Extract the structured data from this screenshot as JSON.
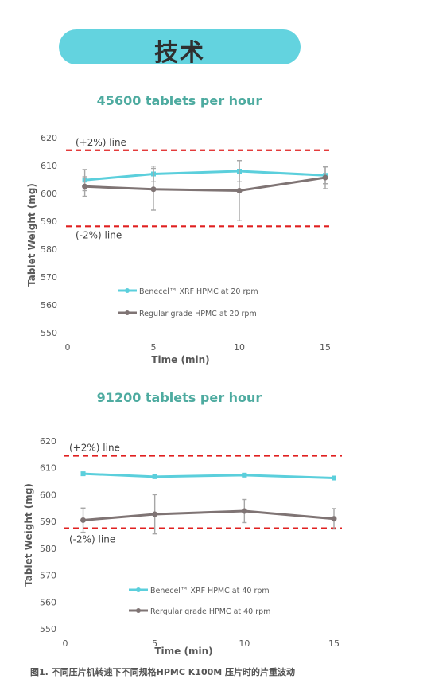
{
  "header": {
    "title": "技术"
  },
  "caption": "图1. 不同压片机转速下不同规格HPMC K100M 压片时的片重波动",
  "colors": {
    "xrf": "#5bcfdc",
    "regular": "#7f7474",
    "ref_line": "#e02020",
    "error_bar": "#a6a6a6"
  },
  "chart_data": [
    {
      "type": "line",
      "title": "45600 tablets per hour",
      "xlabel": "Time (min)",
      "ylabel": "Tablet Weight (mg)",
      "xlim": [
        0,
        15
      ],
      "ylim": [
        550,
        620
      ],
      "x_ticks": [
        "0",
        "5",
        "10",
        "15"
      ],
      "y_ticks": [
        "550",
        "560",
        "570",
        "580",
        "590",
        "600",
        "610",
        "620"
      ],
      "grid": false,
      "legend": "lower-left-inside",
      "reference_lines": [
        {
          "label": "(+2%) line",
          "y": 615.5
        },
        {
          "label": "(-2%) line",
          "y": 588.2
        }
      ],
      "series": [
        {
          "name": "Benecel™ XRF HPMC at 20 rpm",
          "x": [
            1,
            5,
            10,
            15
          ],
          "values": [
            604.8,
            607.0,
            608.0,
            606.5
          ],
          "err": [
            3.8,
            2.8,
            3.8,
            3.0
          ]
        },
        {
          "name": "Regular grade HPMC at 20 rpm",
          "x": [
            1,
            5,
            10,
            15
          ],
          "values": [
            602.5,
            601.5,
            601.0,
            605.7
          ],
          "err": [
            3.5,
            7.5,
            10.8,
            4.0
          ]
        }
      ]
    },
    {
      "type": "line",
      "title": "91200 tablets per hour",
      "xlabel": "Time (min)",
      "ylabel": "Tablet Weight (mg)",
      "xlim": [
        0,
        15
      ],
      "ylim": [
        550,
        620
      ],
      "x_ticks": [
        "0",
        "5",
        "10",
        "15"
      ],
      "y_ticks": [
        "550",
        "560",
        "570",
        "580",
        "590",
        "600",
        "610",
        "620"
      ],
      "grid": false,
      "legend": "lower-left-inside",
      "reference_lines": [
        {
          "label": "(+2%) line",
          "y": 614.5
        },
        {
          "label": "(-2%) line",
          "y": 587.5
        }
      ],
      "series": [
        {
          "name": "Benecel™ XRF HPMC at 40 rpm",
          "x": [
            1,
            5,
            10,
            15
          ],
          "values": [
            607.8,
            606.7,
            607.3,
            606.2
          ],
          "err": [
            0.6,
            0.6,
            0.6,
            0.6
          ]
        },
        {
          "name": "Rergular grade HPMC at 40 rpm",
          "x": [
            1,
            5,
            10,
            15
          ],
          "values": [
            590.5,
            592.7,
            593.9,
            591.0
          ],
          "err": [
            4.5,
            7.3,
            4.3,
            3.8
          ]
        }
      ]
    }
  ]
}
